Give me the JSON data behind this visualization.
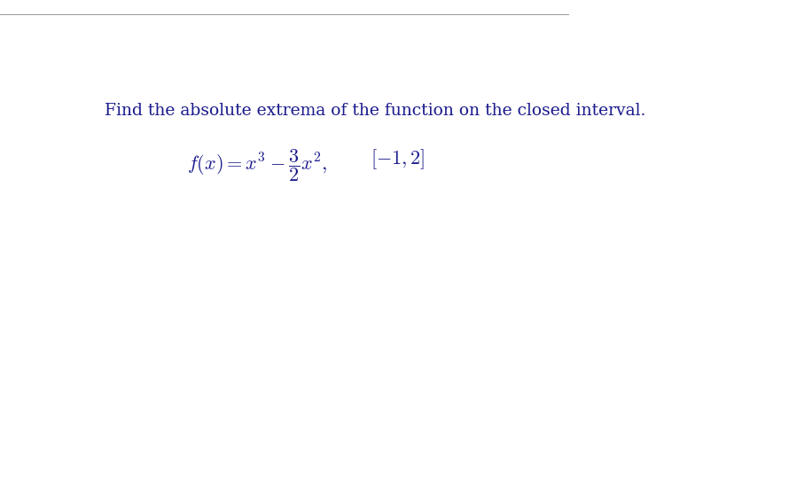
{
  "bg_color": "#ffffff",
  "top_line_color": "#a0a0a0",
  "instruction_text": "Find the absolute extrema of the function on the closed interval.",
  "instruction_color": "#1a1a8c",
  "instruction_fontsize": 13.5,
  "formula_color": "#1a1a8c",
  "interval_color": "#1a1a8c",
  "figure_width": 8.9,
  "figure_height": 5.46,
  "dpi": 100
}
